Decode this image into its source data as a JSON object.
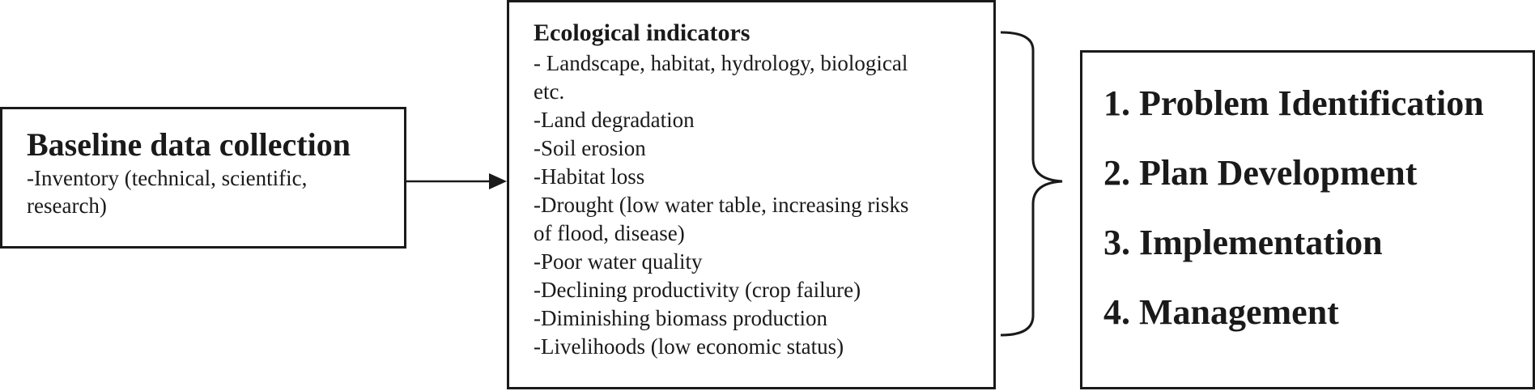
{
  "baseline": {
    "title": "Baseline data collection",
    "body": "-Inventory (technical, scientific, research)"
  },
  "indicators": {
    "title": "Ecological indicators",
    "items": [
      "- Landscape, habitat, hydrology, biological",
      "etc.",
      "-Land degradation",
      "-Soil erosion",
      "-Habitat loss",
      "-Drought (low water table, increasing risks",
      "of flood, disease)",
      "-Poor water quality",
      "-Declining productivity (crop failure)",
      "-Diminishing biomass production",
      "-Livelihoods (low economic status)"
    ]
  },
  "steps": [
    "1. Problem Identification",
    "2. Plan Development",
    "3. Implementation",
    "4. Management"
  ]
}
